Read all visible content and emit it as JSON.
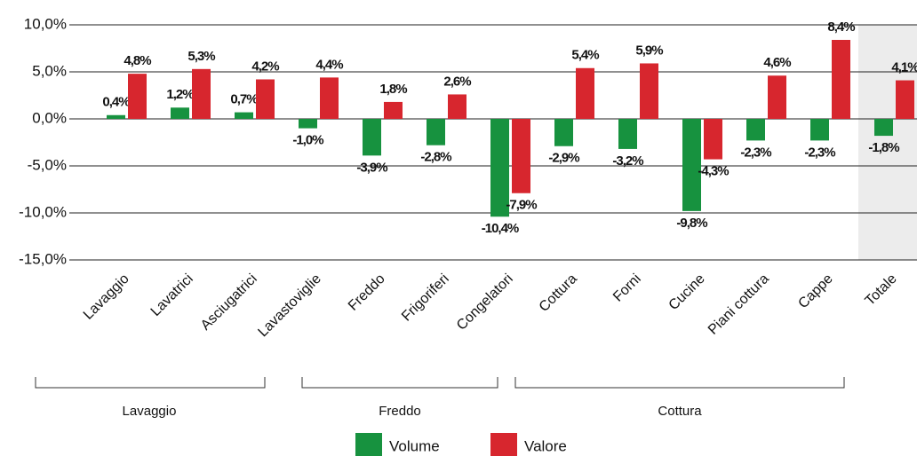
{
  "chart_data": {
    "type": "bar",
    "categories": [
      "Lavaggio",
      "Lavatrici",
      "Asciugatrici",
      "Lavastoviglie",
      "Freddo",
      "Frigoriferi",
      "Congelatori",
      "Cottura",
      "Forni",
      "Cucine",
      "Piani cottura",
      "Cappe",
      "Totale"
    ],
    "series": [
      {
        "name": "Volume",
        "color": "#17923f",
        "values": [
          0.4,
          1.2,
          0.7,
          -1.0,
          -3.9,
          -2.8,
          -10.4,
          -2.9,
          -3.2,
          -9.8,
          -2.3,
          -2.3,
          -1.8
        ],
        "value_labels": [
          "0,4%",
          "1,2%",
          "0,7%",
          "-1,0%",
          "-3,9%",
          "-2,8%",
          "-10,4%",
          "-2,9%",
          "-3,2%",
          "-9,8%",
          "-2,3%",
          "-2,3%",
          "-1,8%"
        ]
      },
      {
        "name": "Valore",
        "color": "#d7262e",
        "values": [
          4.8,
          5.3,
          4.2,
          4.4,
          1.8,
          2.6,
          -7.9,
          5.4,
          5.9,
          -4.3,
          4.6,
          8.4,
          4.1
        ],
        "value_labels": [
          "4,8%",
          "5,3%",
          "4,2%",
          "4,4%",
          "1,8%",
          "2,6%",
          "-7,9%",
          "5,4%",
          "5,9%",
          "-4,3%",
          "4,6%",
          "8,4%",
          "4,1%"
        ]
      }
    ],
    "ylim": [
      -15,
      10
    ],
    "yticks": [
      {
        "value": -15,
        "label": "-15,0%"
      },
      {
        "value": -10,
        "label": "-10,0%"
      },
      {
        "value": -5,
        "label": "-5,0%"
      },
      {
        "value": 0,
        "label": "0,0%"
      },
      {
        "value": 5,
        "label": "5,0%"
      },
      {
        "value": 10,
        "label": "10,0%"
      }
    ],
    "grid": true,
    "groups": [
      "Lavaggio",
      "Freddo",
      "Cottura"
    ]
  }
}
